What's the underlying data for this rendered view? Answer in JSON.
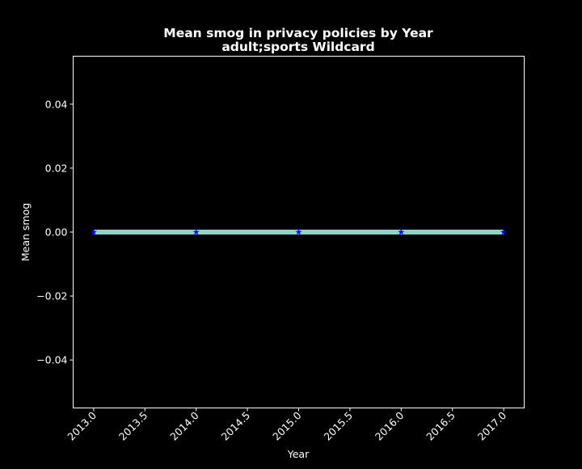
{
  "chart_data": {
    "type": "line",
    "title": "Mean smog in privacy policies by Year",
    "subtitle": "adult;sports Wildcard",
    "xlabel": "Year",
    "ylabel": "Mean smog",
    "x": [
      2013,
      2014,
      2015,
      2016,
      2017
    ],
    "series": [
      {
        "values": [
          0,
          0,
          0,
          0,
          0
        ],
        "line_color": "#8dd3c7",
        "marker_color": "#0000ff",
        "marker": "star"
      }
    ],
    "xlim": [
      2012.8,
      2017.2
    ],
    "ylim": [
      -0.055,
      0.055
    ],
    "x_ticks": [
      2013.0,
      2013.5,
      2014.0,
      2014.5,
      2015.0,
      2015.5,
      2016.0,
      2016.5,
      2017.0
    ],
    "x_tick_labels": [
      "2013.0",
      "2013.5",
      "2014.0",
      "2014.5",
      "2015.0",
      "2015.5",
      "2016.0",
      "2016.5",
      "2017.0"
    ],
    "y_ticks": [
      0.04,
      0.02,
      0.0,
      -0.02,
      -0.04
    ],
    "y_tick_labels": [
      "0.04",
      "0.02",
      "0.00",
      "−0.02",
      "−0.04"
    ],
    "grid": false,
    "background_color": "#000000",
    "text_color": "#ffffff",
    "axes_color": "#ffffff"
  }
}
